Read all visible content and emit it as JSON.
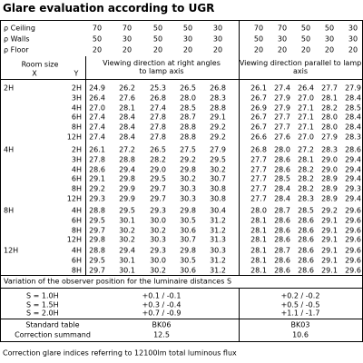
{
  "title": "Glare evaluation according to UGR",
  "reflectances": [
    {
      "label": "ρ Ceiling",
      "values": [
        "70",
        "70",
        "50",
        "50",
        "30",
        "70",
        "70",
        "50",
        "50",
        "30"
      ]
    },
    {
      "label": "ρ Walls",
      "values": [
        "50",
        "30",
        "50",
        "30",
        "30",
        "50",
        "30",
        "50",
        "30",
        "30"
      ]
    },
    {
      "label": "ρ Floor",
      "values": [
        "20",
        "20",
        "20",
        "20",
        "20",
        "20",
        "20",
        "20",
        "20",
        "20"
      ]
    }
  ],
  "header": {
    "room_size": "Room size",
    "x": "X",
    "y": "Y",
    "right_angles": "Viewing direction at right angles to lamp axis",
    "parallel": "Viewing direction parallel to lamp axis"
  },
  "groups": [
    [
      {
        "x": "2H",
        "y": "2H",
        "values": [
          "24.9",
          "26.2",
          "25.3",
          "26.5",
          "26.8",
          "26.1",
          "27.4",
          "26.4",
          "27.7",
          "27.9"
        ]
      },
      {
        "x": "",
        "y": "3H",
        "values": [
          "26.4",
          "27.6",
          "26.8",
          "28.0",
          "28.3",
          "26.7",
          "27.9",
          "27.0",
          "28.1",
          "28.4"
        ]
      },
      {
        "x": "",
        "y": "4H",
        "values": [
          "27.0",
          "28.1",
          "27.4",
          "28.5",
          "28.8",
          "26.9",
          "27.9",
          "27.1",
          "28.2",
          "28.5"
        ]
      },
      {
        "x": "",
        "y": "6H",
        "values": [
          "27.4",
          "28.4",
          "27.8",
          "28.7",
          "29.1",
          "26.7",
          "27.7",
          "27.1",
          "28.0",
          "28.4"
        ]
      },
      {
        "x": "",
        "y": "8H",
        "values": [
          "27.4",
          "28.4",
          "27.8",
          "28.8",
          "29.2",
          "26.7",
          "27.7",
          "27.1",
          "28.0",
          "28.4"
        ]
      },
      {
        "x": "",
        "y": "12H",
        "values": [
          "27.4",
          "28.4",
          "27.8",
          "28.8",
          "29.2",
          "26.6",
          "27.6",
          "27.0",
          "27.9",
          "28.3"
        ]
      }
    ],
    [
      {
        "x": "4H",
        "y": "2H",
        "values": [
          "26.1",
          "27.2",
          "26.5",
          "27.5",
          "27.9",
          "26.8",
          "28.0",
          "27.2",
          "28.3",
          "28.6"
        ]
      },
      {
        "x": "",
        "y": "3H",
        "values": [
          "27.8",
          "28.8",
          "28.2",
          "29.2",
          "29.5",
          "27.7",
          "28.6",
          "28.1",
          "29.0",
          "29.4"
        ]
      },
      {
        "x": "",
        "y": "4H",
        "values": [
          "28.6",
          "29.4",
          "29.0",
          "29.8",
          "30.2",
          "27.7",
          "28.6",
          "28.2",
          "29.0",
          "29.4"
        ]
      },
      {
        "x": "",
        "y": "6H",
        "values": [
          "29.1",
          "29.8",
          "29.5",
          "30.2",
          "30.7",
          "27.7",
          "28.5",
          "28.2",
          "28.9",
          "29.4"
        ]
      },
      {
        "x": "",
        "y": "8H",
        "values": [
          "29.2",
          "29.9",
          "29.7",
          "30.3",
          "30.8",
          "27.7",
          "28.4",
          "28.2",
          "28.9",
          "29.3"
        ]
      },
      {
        "x": "",
        "y": "12H",
        "values": [
          "29.3",
          "29.9",
          "29.7",
          "30.3",
          "30.8",
          "27.7",
          "28.4",
          "28.3",
          "28.9",
          "29.4"
        ]
      }
    ],
    [
      {
        "x": "8H",
        "y": "4H",
        "values": [
          "28.8",
          "29.5",
          "29.3",
          "29.8",
          "30.4",
          "28.0",
          "28.7",
          "28.5",
          "29.2",
          "29.6"
        ]
      },
      {
        "x": "",
        "y": "6H",
        "values": [
          "29.5",
          "30.1",
          "30.0",
          "30.5",
          "31.2",
          "28.1",
          "28.6",
          "28.6",
          "29.1",
          "29.6"
        ]
      },
      {
        "x": "",
        "y": "8H",
        "values": [
          "29.7",
          "30.2",
          "30.2",
          "30.6",
          "31.2",
          "28.1",
          "28.6",
          "28.6",
          "29.1",
          "29.6"
        ]
      },
      {
        "x": "",
        "y": "12H",
        "values": [
          "29.8",
          "30.2",
          "30.3",
          "30.7",
          "31.3",
          "28.1",
          "28.6",
          "28.6",
          "29.1",
          "29.6"
        ]
      }
    ],
    [
      {
        "x": "12H",
        "y": "4H",
        "values": [
          "28.8",
          "29.4",
          "29.3",
          "29.8",
          "30.3",
          "28.1",
          "28.7",
          "28.6",
          "29.1",
          "29.6"
        ]
      },
      {
        "x": "",
        "y": "6H",
        "values": [
          "29.5",
          "30.1",
          "30.0",
          "30.5",
          "31.2",
          "28.1",
          "28.6",
          "28.6",
          "29.1",
          "29.6"
        ]
      },
      {
        "x": "",
        "y": "8H",
        "values": [
          "29.7",
          "30.1",
          "30.2",
          "30.6",
          "31.2",
          "28.1",
          "28.6",
          "28.6",
          "29.1",
          "29.6"
        ]
      }
    ]
  ],
  "variation": {
    "title": "Variation of the observer position for the luminaire distances S",
    "rows": [
      {
        "label": "S = 1.0H",
        "right_angles": "+0.1 / -0.1",
        "parallel": "+0.2 / -0.2"
      },
      {
        "label": "S = 1.5H",
        "right_angles": "+0.3 / -0.4",
        "parallel": "+0.5 / -0.5"
      },
      {
        "label": "S = 2.0H",
        "right_angles": "+0.7 / -0.9",
        "parallel": "+1.1 / -1.7"
      }
    ]
  },
  "standard_table": {
    "label": "Standard table",
    "right_angles": "BK06",
    "parallel": "BK03"
  },
  "correction_summand": {
    "label": "Correction summand",
    "right_angles": "12.5",
    "parallel": "10.6"
  },
  "footer": "Correction glare indices referring to 12100lm total luminous flux"
}
